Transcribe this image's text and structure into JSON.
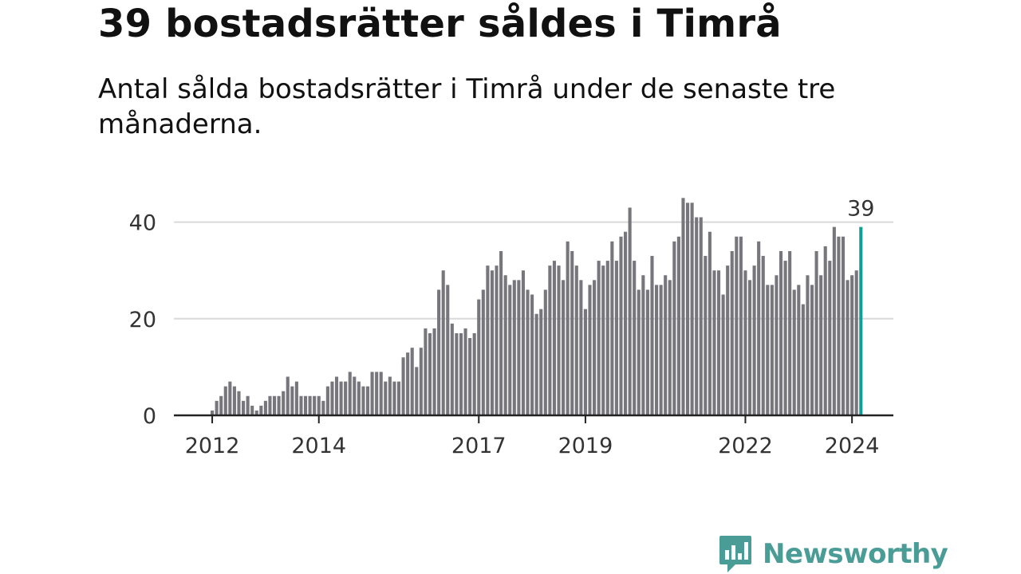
{
  "title": "39 bostadsrätter såldes i Timrå",
  "subtitle": "Antal sålda bostadsrätter i Timrå under de senaste tre månaderna.",
  "colors": {
    "bar": "#76767c",
    "highlight": "#139e95",
    "grid": "#d9d9d9",
    "axis": "#222222",
    "brand": "#4a9c96"
  },
  "logo": {
    "text": "Newsworthy",
    "icon": "chart-speech-bubble-icon"
  },
  "chart_data": {
    "type": "bar",
    "x_start": "2012-01",
    "frequency": "monthly",
    "values": [
      1,
      3,
      4,
      6,
      7,
      6,
      5,
      3,
      4,
      2,
      1,
      2,
      3,
      4,
      4,
      4,
      5,
      8,
      6,
      7,
      4,
      4,
      4,
      4,
      4,
      3,
      6,
      7,
      8,
      7,
      7,
      9,
      8,
      7,
      6,
      6,
      9,
      9,
      9,
      7,
      8,
      7,
      7,
      12,
      13,
      14,
      10,
      14,
      18,
      17,
      18,
      26,
      30,
      27,
      19,
      17,
      17,
      18,
      16,
      17,
      24,
      26,
      31,
      30,
      31,
      34,
      29,
      27,
      28,
      28,
      30,
      26,
      25,
      21,
      22,
      26,
      31,
      32,
      31,
      28,
      36,
      34,
      31,
      28,
      22,
      27,
      28,
      32,
      31,
      32,
      36,
      32,
      37,
      38,
      43,
      32,
      26,
      29,
      26,
      33,
      27,
      27,
      29,
      28,
      36,
      37,
      45,
      44,
      44,
      41,
      41,
      33,
      38,
      30,
      30,
      25,
      31,
      34,
      37,
      37,
      30,
      28,
      31,
      36,
      33,
      27,
      27,
      29,
      34,
      32,
      34,
      26,
      27,
      23,
      29,
      27,
      34,
      29,
      35,
      32,
      39,
      37,
      37,
      28,
      29,
      30,
      39
    ],
    "highlight_last": true,
    "annotation": "39",
    "y_ticks": [
      0,
      20,
      40
    ],
    "y_tick_labels": [
      "0",
      "20",
      "40"
    ],
    "ylim": [
      0,
      46
    ],
    "x_ticks": [
      "2012-01",
      "2014-01",
      "2017-01",
      "2019-01",
      "2022-01",
      "2024-01"
    ],
    "x_tick_labels": [
      "2012",
      "2014",
      "2017",
      "2019",
      "2022",
      "2024"
    ],
    "grid": true,
    "xlabel": "",
    "ylabel": ""
  }
}
